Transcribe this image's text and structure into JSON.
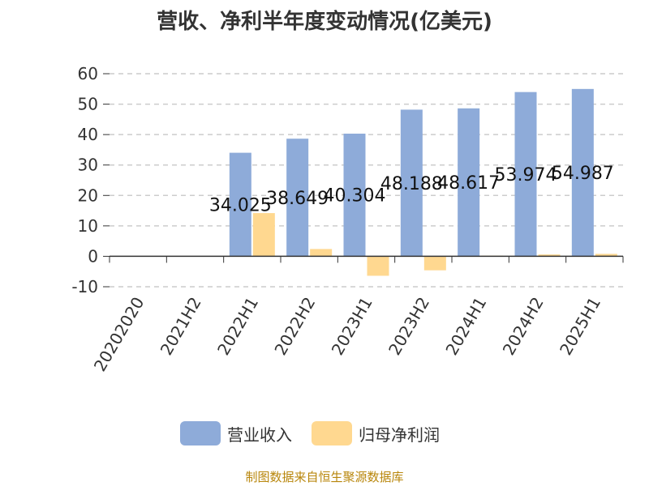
{
  "title": "营收、净利半年度变动情况(亿美元)",
  "source_note": "制图数据来自恒生聚源数据库",
  "colors": {
    "revenue": "#8eabd9",
    "net_profit": "#ffd890",
    "axis": "#333333",
    "grid": "#cccccc",
    "source": "#b8860b"
  },
  "chart_data": {
    "type": "bar",
    "title": "营收、净利半年度变动情况(亿美元)",
    "categories": [
      "20202020",
      "2021H2",
      "2022H1",
      "2022H2",
      "2023H1",
      "2023H2",
      "2024H1",
      "2024H2",
      "2025H1"
    ],
    "series": [
      {
        "name": "营业收入",
        "values": [
          null,
          null,
          34.025,
          38.649,
          40.304,
          48.188,
          48.617,
          53.974,
          54.987
        ],
        "labels": [
          "",
          "",
          "34.025",
          "38.649",
          "40.304",
          "48.188",
          "48.617",
          "53.974",
          "54.987"
        ]
      },
      {
        "name": "归母净利润",
        "values": [
          null,
          null,
          14.2,
          2.4,
          -6.4,
          -4.6,
          0.2,
          0.6,
          0.8
        ]
      }
    ],
    "ylim": [
      -10,
      60
    ],
    "yticks": [
      "-10",
      "0",
      "10",
      "20",
      "30",
      "40",
      "50",
      "60"
    ],
    "grid": true,
    "legend_position": "bottom"
  }
}
